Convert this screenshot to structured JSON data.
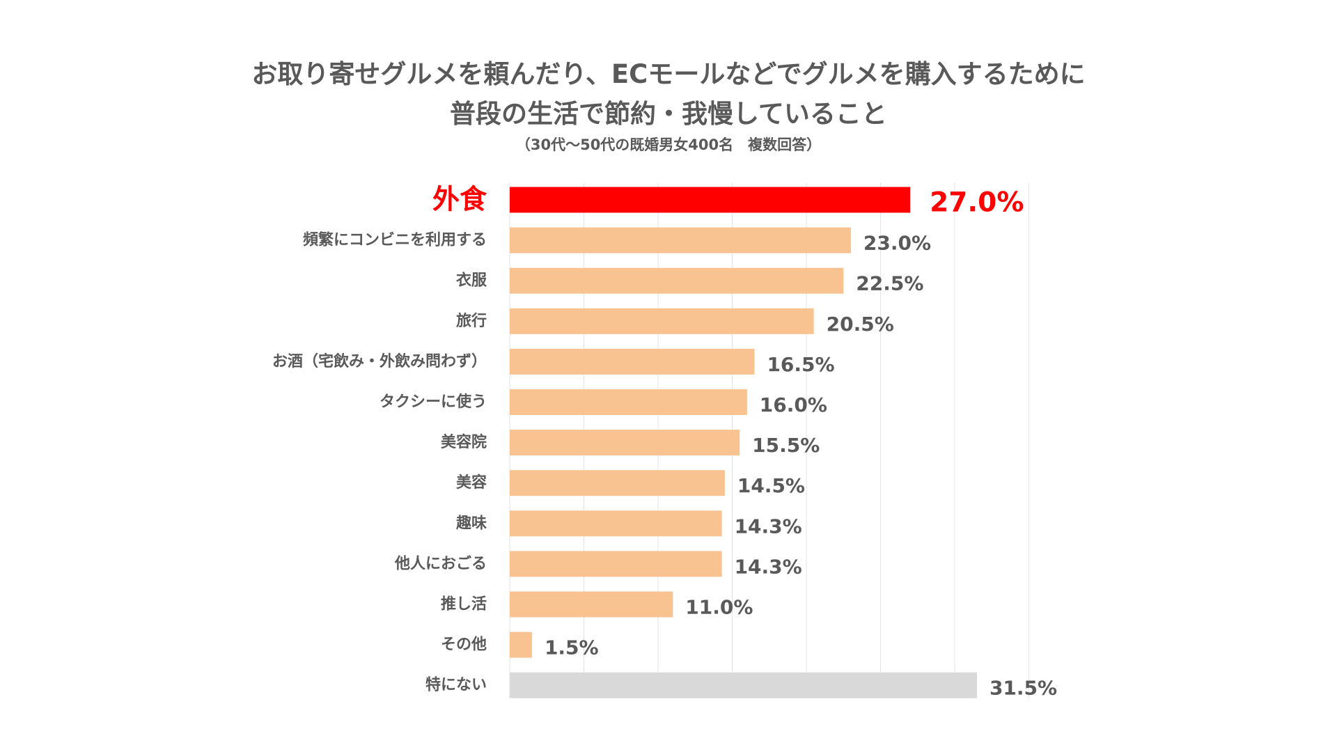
{
  "chart_data": {
    "type": "bar",
    "orientation": "horizontal",
    "title": [
      "お取り寄せグルメを頼んだり、ECモールなどでグルメを購入するために",
      "普段の生活で節約・我慢していること"
    ],
    "subtitle": "（30代〜50代の既婚男女400名　複数回答）",
    "categories": [
      "外食",
      "頻繁にコンビニを利用する",
      "衣服",
      "旅行",
      "お酒（宅飲み・外飲み問わず）",
      "タクシーに使う",
      "美容院",
      "美容",
      "趣味",
      "他人におごる",
      "推し活",
      "その他",
      "特にない"
    ],
    "values": [
      27.0,
      23.0,
      22.5,
      20.5,
      16.5,
      16.0,
      15.5,
      14.5,
      14.3,
      14.3,
      11.0,
      1.5,
      31.5
    ],
    "value_labels": [
      "27.0%",
      "23.0%",
      "22.5%",
      "20.5%",
      "16.5%",
      "16.0%",
      "15.5%",
      "14.5%",
      "14.3%",
      "14.3%",
      "11.0%",
      "1.5%",
      "31.5%"
    ],
    "xlim": [
      0,
      35
    ],
    "grid": true,
    "grid_step": 5,
    "xlabel": "",
    "ylabel": "",
    "colors": {
      "highlight": "#ff0000",
      "default": "#f8c291",
      "none": "#d9d9d9",
      "text": "#595959",
      "grid": "#e3e3e3"
    }
  }
}
